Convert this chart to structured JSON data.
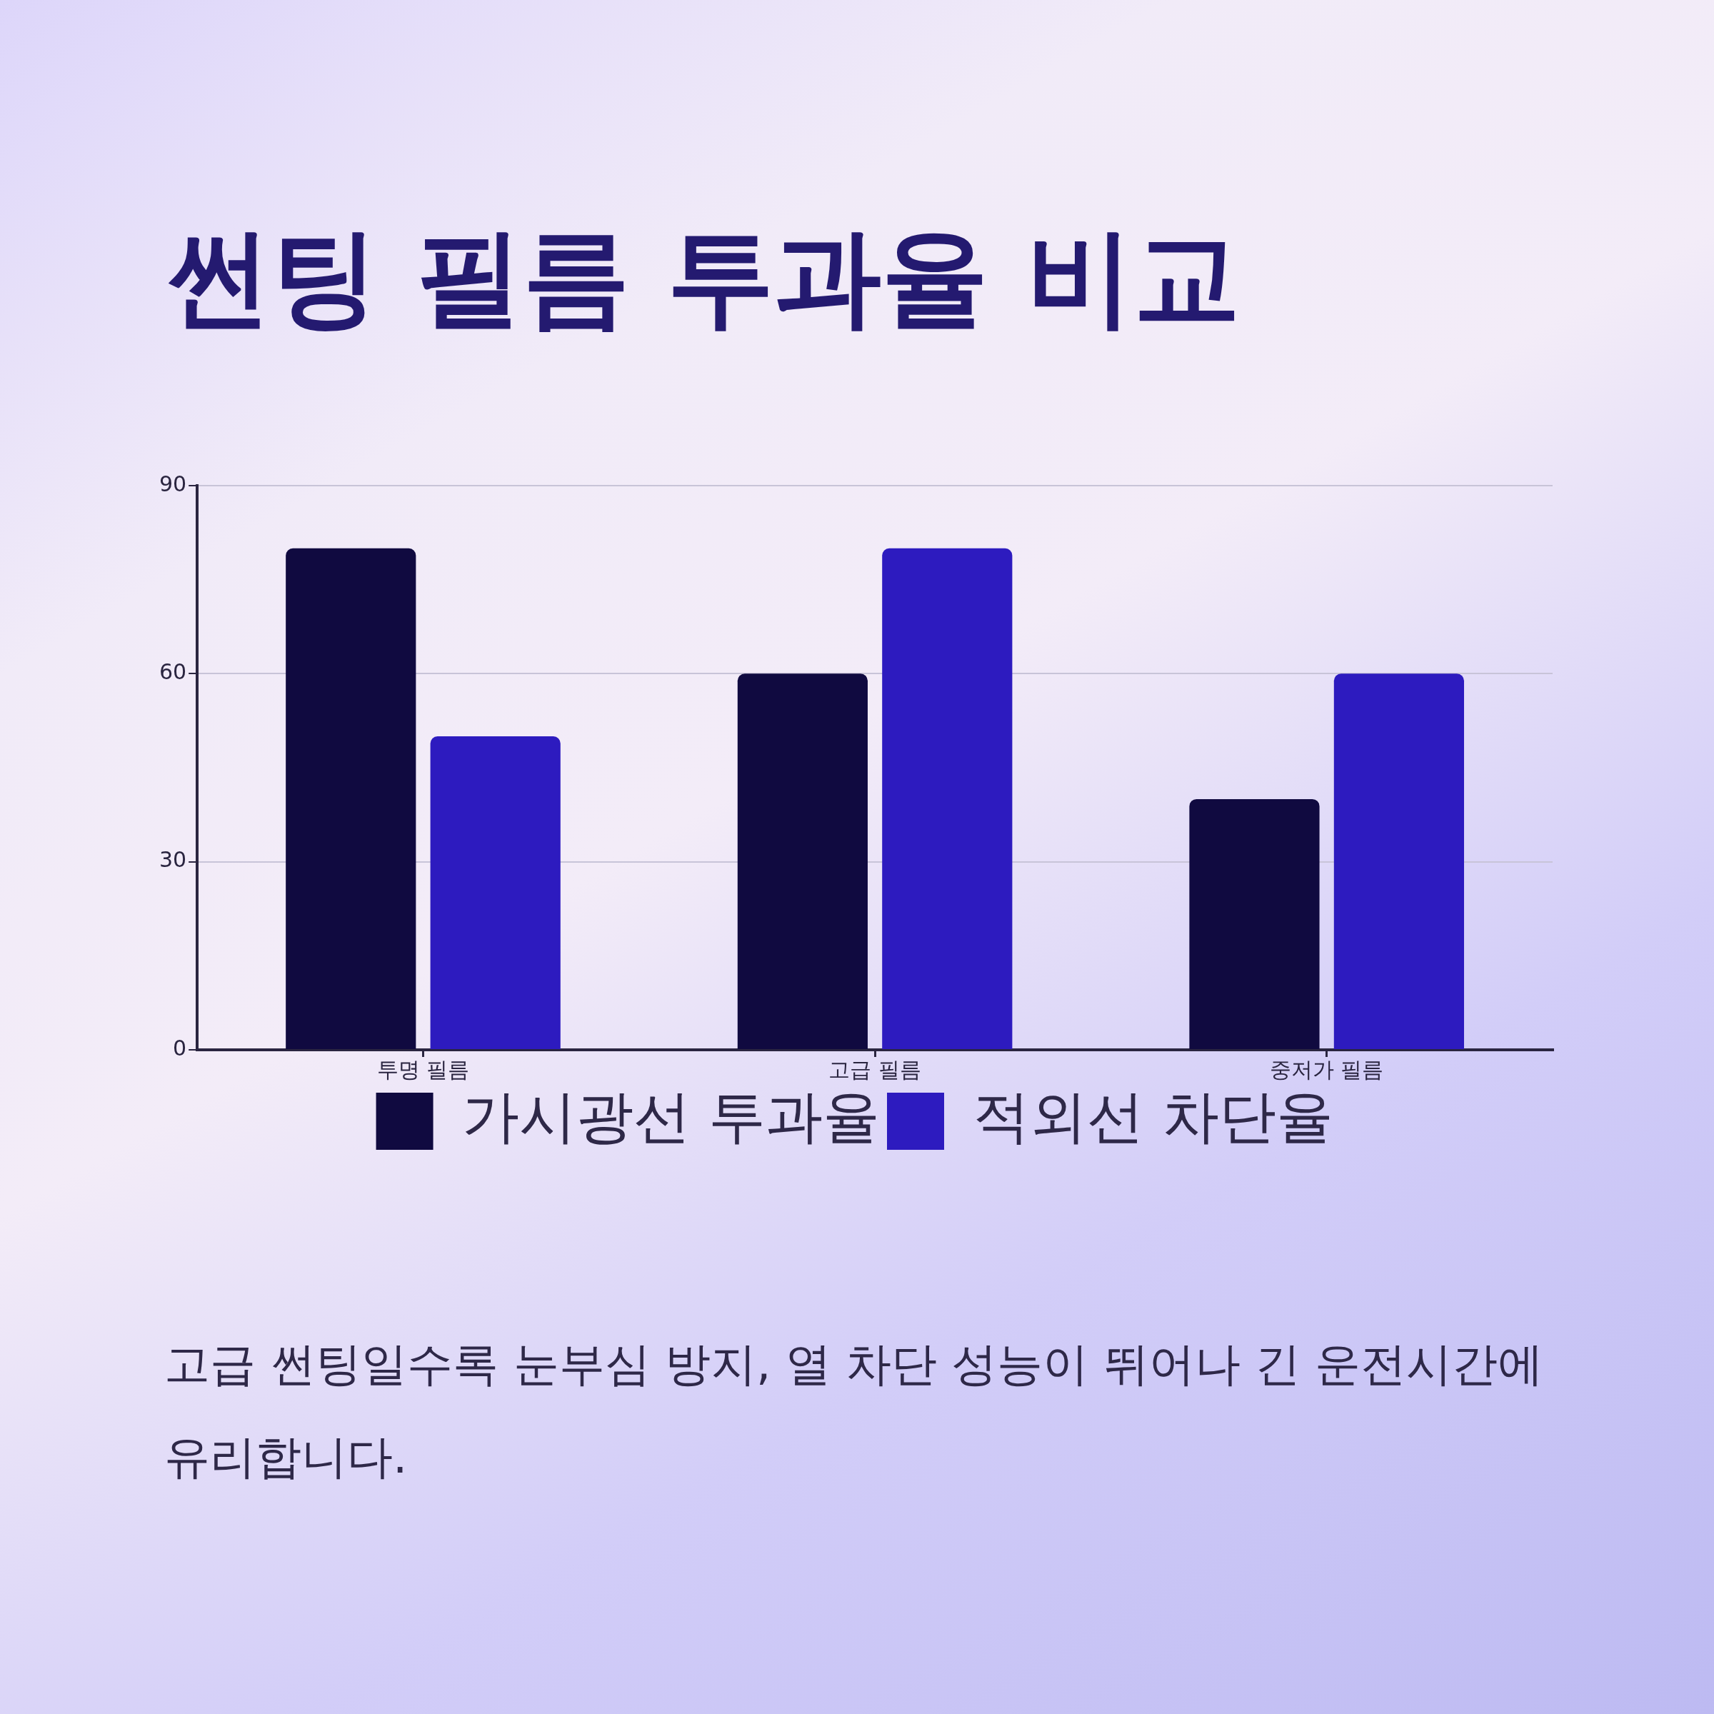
{
  "chart_data": {
    "type": "bar",
    "title": "썬팅 필름 투과율 비교",
    "categories": [
      "투명 필름",
      "고급 필름",
      "중저가 필름"
    ],
    "series": [
      {
        "name": "가시광선 투과율",
        "color": "#100a40",
        "values": [
          80,
          60,
          40
        ]
      },
      {
        "name": "적외선 차단율",
        "color": "#2d1bbf",
        "values": [
          50,
          80,
          60
        ]
      }
    ],
    "ylim": [
      0,
      90
    ],
    "yticks": [
      0,
      30,
      60,
      90
    ],
    "grid": "y",
    "legend": "bottom",
    "annotations": [
      "고급 썬팅일수록 눈부심 방지, 열 차단 성능이 뛰어나 긴 운전시간에 유리합니다."
    ]
  }
}
